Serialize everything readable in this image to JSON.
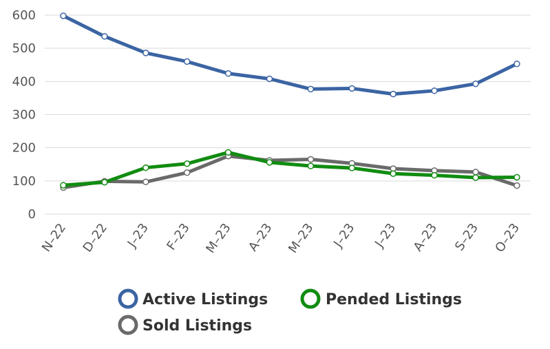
{
  "chart_data": {
    "type": "line",
    "title": "",
    "xlabel": "",
    "ylabel": "",
    "categories": [
      "N–22",
      "D–22",
      "J–23",
      "F–23",
      "M–23",
      "A–23",
      "M–23",
      "J–23",
      "J–23",
      "A–23",
      "S–23",
      "O–23"
    ],
    "ylim": [
      0,
      600
    ],
    "yticks": [
      0,
      100,
      200,
      300,
      400,
      500,
      600
    ],
    "grid": true,
    "legend_position": "bottom",
    "series": [
      {
        "name": "Active Listings",
        "color": "#3b64a3",
        "values": [
          598,
          536,
          486,
          460,
          424,
          408,
          377,
          379,
          362,
          372,
          393,
          453
        ]
      },
      {
        "name": "Pended Listings",
        "color": "#118c11",
        "values": [
          87,
          96,
          140,
          152,
          186,
          156,
          145,
          139,
          122,
          117,
          110,
          111
        ]
      },
      {
        "name": "Sold Listings",
        "color": "#6a6a6a",
        "values": [
          80,
          99,
          97,
          125,
          175,
          162,
          165,
          153,
          137,
          131,
          127,
          86
        ]
      }
    ]
  }
}
